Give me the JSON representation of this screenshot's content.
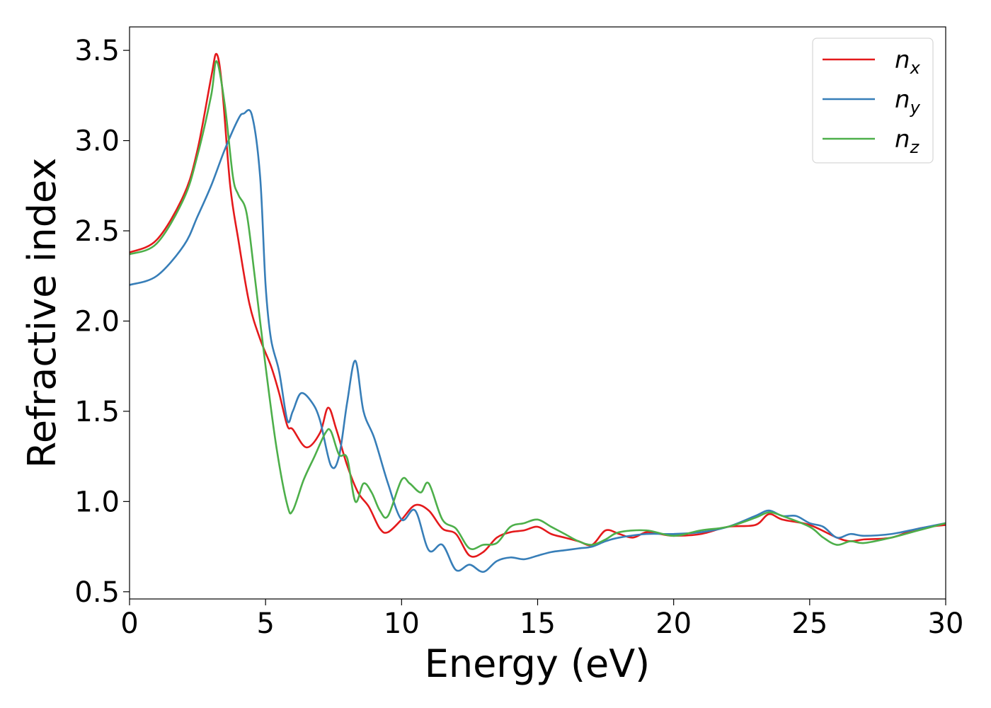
{
  "chart_data": {
    "type": "line",
    "xlabel": "Energy (eV)",
    "ylabel": "Refractive index",
    "xlim": [
      0,
      30
    ],
    "ylim": [
      0.46,
      3.63
    ],
    "xticks": [
      "0",
      "5",
      "10",
      "15",
      "20",
      "25",
      "30"
    ],
    "yticks": [
      "0.5",
      "1.0",
      "1.5",
      "2.0",
      "2.5",
      "3.0",
      "3.5"
    ],
    "grid": false,
    "legend_position": "top-right",
    "series": [
      {
        "name": "n",
        "subscript": "x",
        "color": "#e41a1c",
        "x": [
          0,
          1,
          2,
          2.5,
          3.0,
          3.2,
          3.4,
          3.7,
          4.0,
          4.4,
          4.8,
          5.2,
          5.5,
          5.8,
          6.0,
          6.5,
          7.0,
          7.3,
          7.6,
          8.0,
          8.4,
          8.8,
          9.2,
          9.5,
          10.0,
          10.5,
          11.0,
          11.5,
          12.0,
          12.5,
          13.0,
          13.5,
          14.0,
          14.5,
          15.0,
          15.5,
          16.0,
          16.5,
          17.0,
          17.5,
          18.0,
          18.5,
          19.0,
          19.5,
          20.0,
          21.0,
          22.0,
          23.0,
          23.5,
          24.0,
          25.0,
          26.0,
          26.5,
          27.0,
          28.0,
          29.0,
          30.0
        ],
        "y": [
          2.38,
          2.45,
          2.7,
          2.95,
          3.35,
          3.48,
          3.3,
          2.75,
          2.45,
          2.1,
          1.9,
          1.75,
          1.6,
          1.42,
          1.4,
          1.3,
          1.38,
          1.52,
          1.4,
          1.2,
          1.05,
          0.97,
          0.85,
          0.83,
          0.9,
          0.98,
          0.95,
          0.85,
          0.82,
          0.7,
          0.72,
          0.8,
          0.83,
          0.84,
          0.86,
          0.82,
          0.8,
          0.78,
          0.76,
          0.84,
          0.82,
          0.8,
          0.83,
          0.82,
          0.81,
          0.82,
          0.86,
          0.87,
          0.93,
          0.9,
          0.87,
          0.8,
          0.78,
          0.79,
          0.8,
          0.85,
          0.87
        ]
      },
      {
        "name": "n",
        "subscript": "y",
        "color": "#377eb8",
        "x": [
          0,
          1,
          2,
          2.5,
          3.0,
          3.5,
          4.0,
          4.2,
          4.5,
          4.8,
          5.0,
          5.2,
          5.5,
          5.8,
          6.0,
          6.3,
          6.7,
          7.0,
          7.4,
          7.7,
          8.0,
          8.3,
          8.6,
          9.0,
          9.5,
          10.0,
          10.5,
          11.0,
          11.5,
          12.0,
          12.5,
          13.0,
          13.5,
          14.0,
          14.5,
          15.0,
          15.5,
          16.0,
          16.5,
          17.0,
          17.5,
          18.0,
          19.0,
          20.0,
          21.0,
          22.0,
          23.0,
          23.5,
          24.0,
          24.5,
          25.0,
          25.5,
          26.0,
          26.5,
          27.0,
          28.0,
          29.0,
          30.0
        ],
        "y": [
          2.2,
          2.25,
          2.42,
          2.58,
          2.75,
          2.95,
          3.12,
          3.15,
          3.14,
          2.8,
          2.2,
          1.9,
          1.72,
          1.45,
          1.5,
          1.6,
          1.55,
          1.45,
          1.2,
          1.25,
          1.55,
          1.78,
          1.5,
          1.35,
          1.1,
          0.9,
          0.95,
          0.73,
          0.76,
          0.62,
          0.65,
          0.61,
          0.67,
          0.69,
          0.68,
          0.7,
          0.72,
          0.73,
          0.74,
          0.75,
          0.78,
          0.8,
          0.82,
          0.82,
          0.83,
          0.86,
          0.92,
          0.95,
          0.92,
          0.92,
          0.88,
          0.86,
          0.8,
          0.82,
          0.81,
          0.82,
          0.85,
          0.88
        ]
      },
      {
        "name": "n",
        "subscript": "z",
        "color": "#4daf4a",
        "x": [
          0,
          1,
          2,
          2.5,
          3.0,
          3.2,
          3.5,
          3.8,
          4.0,
          4.3,
          4.6,
          5.0,
          5.4,
          5.8,
          6.0,
          6.4,
          6.8,
          7.2,
          7.4,
          7.7,
          8.0,
          8.3,
          8.6,
          8.9,
          9.2,
          9.5,
          10.0,
          10.3,
          10.7,
          11.0,
          11.5,
          12.0,
          12.5,
          13.0,
          13.5,
          14.0,
          14.5,
          15.0,
          15.5,
          16.0,
          16.5,
          17.0,
          17.5,
          18.0,
          19.0,
          20.0,
          21.0,
          22.0,
          23.0,
          23.5,
          24.0,
          25.0,
          25.5,
          26.0,
          26.5,
          27.0,
          28.0,
          29.0,
          30.0
        ],
        "y": [
          2.37,
          2.43,
          2.68,
          2.92,
          3.25,
          3.44,
          3.2,
          2.8,
          2.7,
          2.6,
          2.25,
          1.75,
          1.3,
          0.98,
          0.95,
          1.12,
          1.25,
          1.38,
          1.39,
          1.26,
          1.24,
          1.0,
          1.1,
          1.05,
          0.95,
          0.92,
          1.12,
          1.1,
          1.05,
          1.1,
          0.9,
          0.85,
          0.74,
          0.76,
          0.77,
          0.86,
          0.88,
          0.9,
          0.86,
          0.82,
          0.78,
          0.76,
          0.79,
          0.83,
          0.84,
          0.81,
          0.84,
          0.86,
          0.91,
          0.94,
          0.92,
          0.86,
          0.8,
          0.76,
          0.78,
          0.77,
          0.8,
          0.84,
          0.88
        ]
      }
    ]
  }
}
